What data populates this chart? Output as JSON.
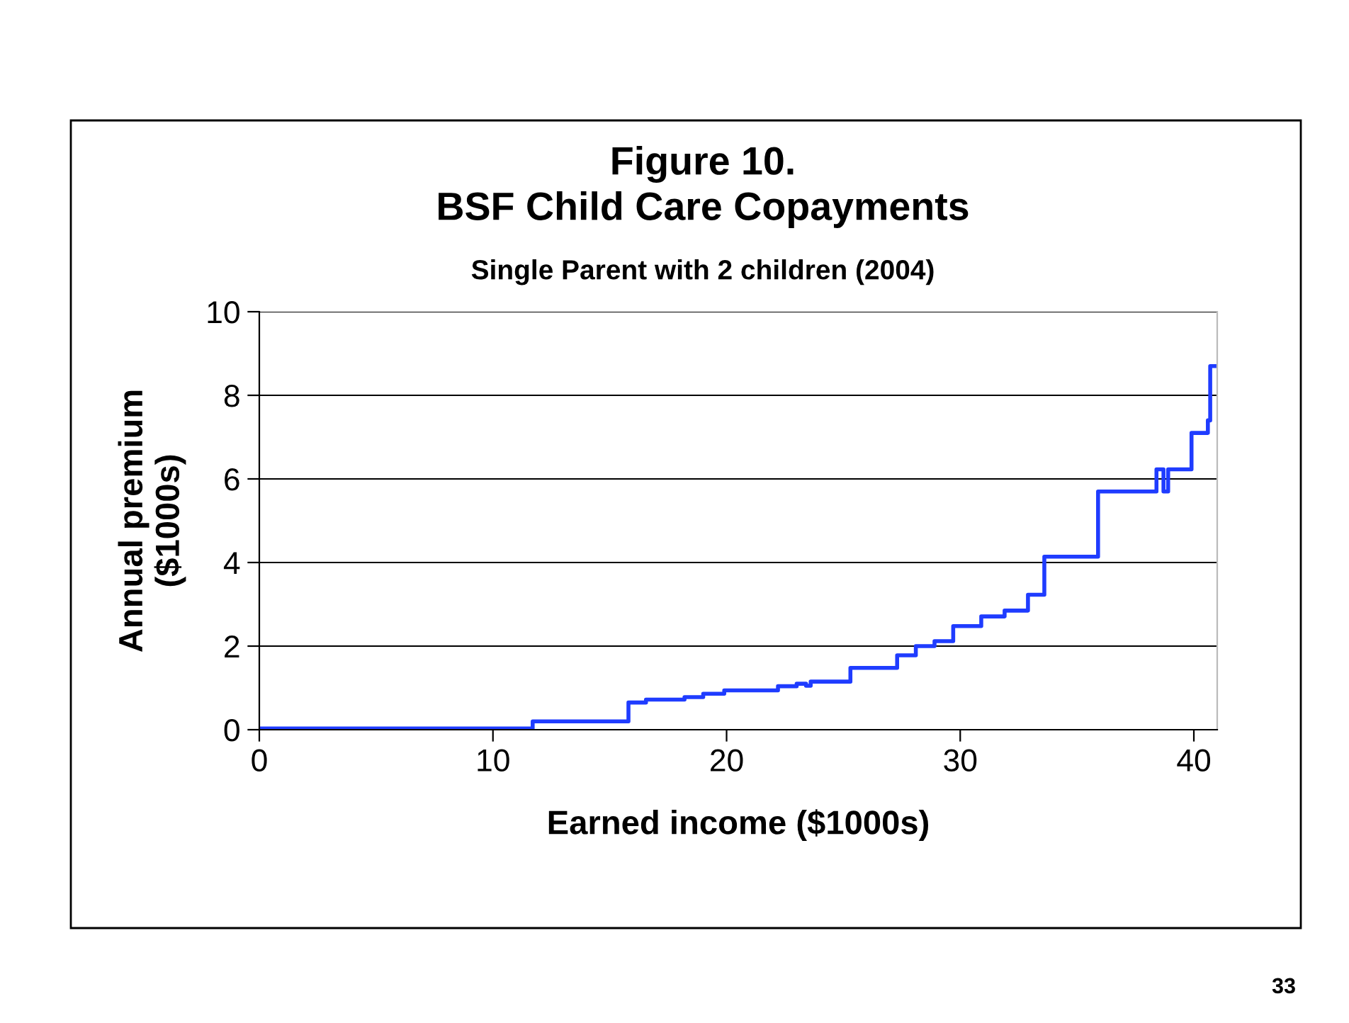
{
  "chart_data": {
    "type": "step",
    "title": "Figure 10.\nBSF Child Care Copayments",
    "subtitle": "Single Parent with 2 children (2004)",
    "xlabel": "Earned income ($1000s)",
    "ylabel": "Annual premium\n($1000s)",
    "x": [
      0,
      11.7,
      15.8,
      16.55,
      18.2,
      19.0,
      19.9,
      22.2,
      23.0,
      23.4,
      23.6,
      25.3,
      27.3,
      28.1,
      28.9,
      29.7,
      30.9,
      31.9,
      32.9,
      33.6,
      35.9,
      38.4,
      38.7,
      38.9,
      39.9,
      40.6,
      40.7,
      41
    ],
    "series": [
      {
        "color": "#1f3cff",
        "values": [
          0.03,
          0.2,
          0.65,
          0.72,
          0.78,
          0.86,
          0.94,
          1.04,
          1.1,
          1.05,
          1.15,
          1.48,
          1.78,
          2.0,
          2.12,
          2.48,
          2.71,
          2.85,
          3.23,
          4.14,
          5.7,
          6.23,
          5.7,
          6.23,
          7.1,
          7.4,
          8.7,
          8.7
        ]
      }
    ],
    "xlim": [
      0,
      41
    ],
    "xticks": [
      0,
      10,
      20,
      30,
      40
    ],
    "ylim": [
      0,
      10
    ],
    "yticks": [
      0,
      2,
      4,
      6,
      8,
      10
    ],
    "grid": "y",
    "annotations": [
      "33"
    ]
  }
}
